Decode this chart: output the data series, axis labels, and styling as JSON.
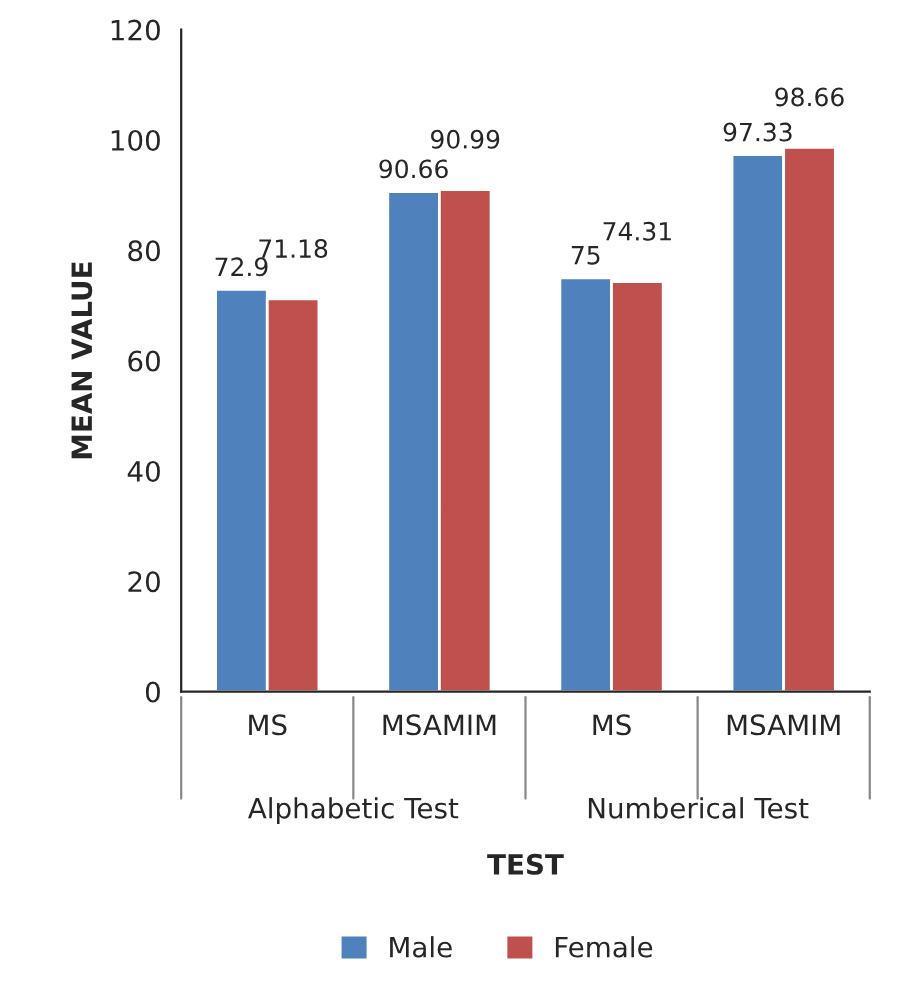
{
  "chart_data": {
    "type": "bar",
    "xlabel": "TEST",
    "ylabel": "MEAN VALUE",
    "categories": [
      "MS",
      "MSAMIM",
      "MS",
      "MSAMIM"
    ],
    "series": [
      {
        "name": "Male",
        "color": "#4f81bd",
        "values": [
          72.9,
          90.66,
          75,
          97.33
        ]
      },
      {
        "name": "Female",
        "color": "#c0504d",
        "values": [
          71.18,
          90.99,
          74.31,
          98.66
        ]
      }
    ],
    "ylim": [
      0,
      120
    ],
    "yticks": [
      0,
      20,
      40,
      60,
      80,
      100,
      120
    ],
    "data_labels": true,
    "legend": "bottom",
    "grid": false,
    "annotations": [
      "Alphabetic Test",
      "Numberical Test"
    ]
  }
}
